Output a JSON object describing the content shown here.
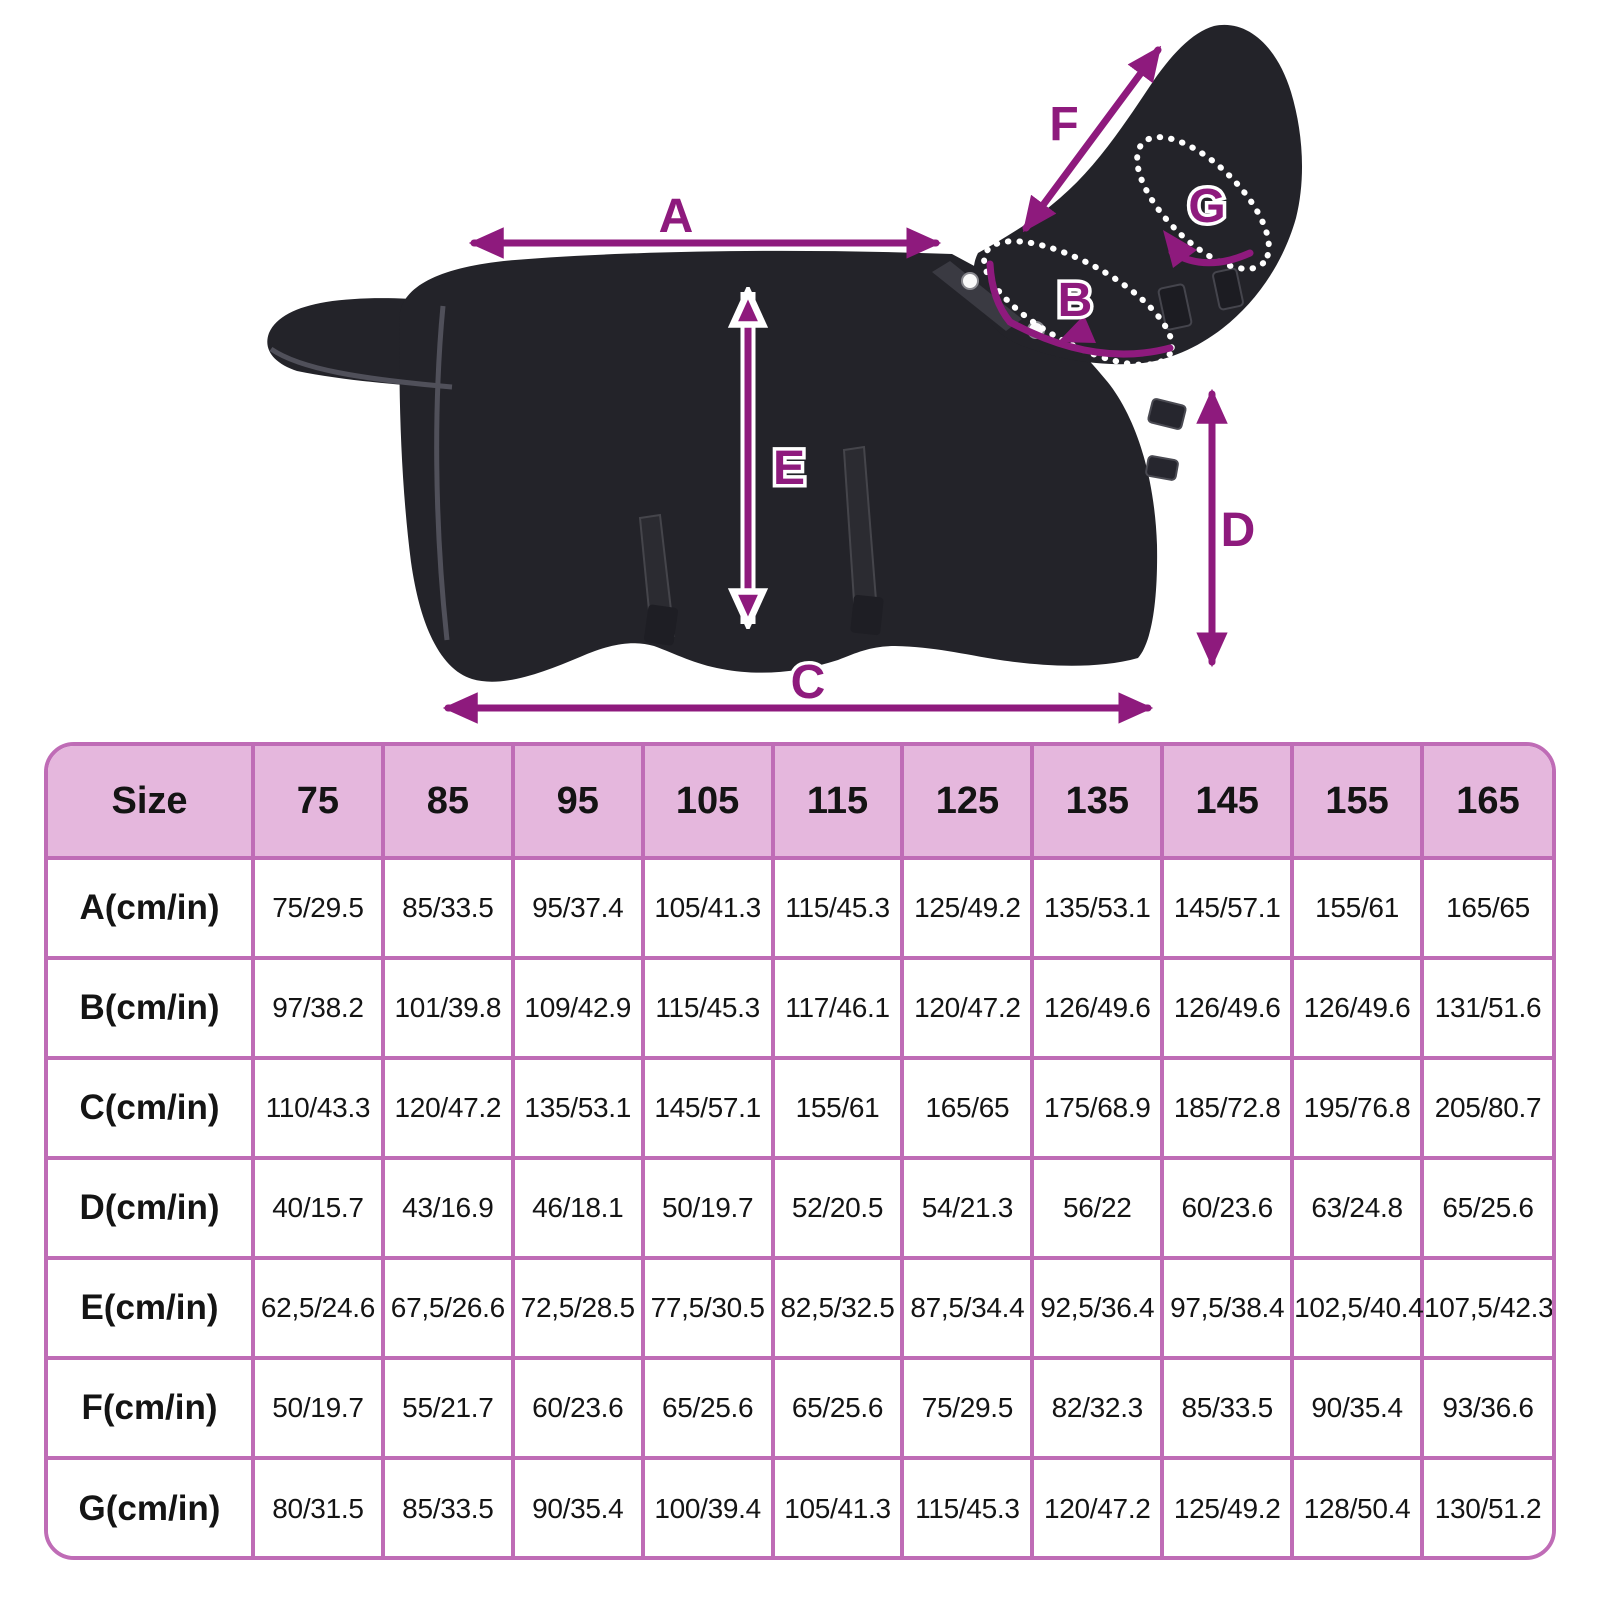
{
  "diagram": {
    "labels": {
      "A": "A",
      "B": "B",
      "C": "C",
      "D": "D",
      "E": "E",
      "F": "F",
      "G": "G"
    },
    "colors": {
      "arrow": "#8e1a7d",
      "blanket": "#232329",
      "blanket_edge": "#50505a"
    }
  },
  "table": {
    "colors": {
      "border": "#bf6cb6",
      "header_fill": "#e5b7dd",
      "cell_fill": "#ffffff",
      "text": "#141414"
    },
    "header": [
      "Size",
      "75",
      "85",
      "95",
      "105",
      "115",
      "125",
      "135",
      "145",
      "155",
      "165"
    ],
    "rows": [
      {
        "label": "A(cm/in)",
        "values": [
          "75/29.5",
          "85/33.5",
          "95/37.4",
          "105/41.3",
          "115/45.3",
          "125/49.2",
          "135/53.1",
          "145/57.1",
          "155/61",
          "165/65"
        ]
      },
      {
        "label": "B(cm/in)",
        "values": [
          "97/38.2",
          "101/39.8",
          "109/42.9",
          "115/45.3",
          "117/46.1",
          "120/47.2",
          "126/49.6",
          "126/49.6",
          "126/49.6",
          "131/51.6"
        ]
      },
      {
        "label": "C(cm/in)",
        "values": [
          "110/43.3",
          "120/47.2",
          "135/53.1",
          "145/57.1",
          "155/61",
          "165/65",
          "175/68.9",
          "185/72.8",
          "195/76.8",
          "205/80.7"
        ]
      },
      {
        "label": "D(cm/in)",
        "values": [
          "40/15.7",
          "43/16.9",
          "46/18.1",
          "50/19.7",
          "52/20.5",
          "54/21.3",
          "56/22",
          "60/23.6",
          "63/24.8",
          "65/25.6"
        ]
      },
      {
        "label": "E(cm/in)",
        "values": [
          "62,5/24.6",
          "67,5/26.6",
          "72,5/28.5",
          "77,5/30.5",
          "82,5/32.5",
          "87,5/34.4",
          "92,5/36.4",
          "97,5/38.4",
          "102,5/40.4",
          "107,5/42.3"
        ]
      },
      {
        "label": "F(cm/in)",
        "values": [
          "50/19.7",
          "55/21.7",
          "60/23.6",
          "65/25.6",
          "65/25.6",
          "75/29.5",
          "82/32.3",
          "85/33.5",
          "90/35.4",
          "93/36.6"
        ]
      },
      {
        "label": "G(cm/in)",
        "values": [
          "80/31.5",
          "85/33.5",
          "90/35.4",
          "100/39.4",
          "105/41.3",
          "115/45.3",
          "120/47.2",
          "125/49.2",
          "128/50.4",
          "130/51.2"
        ]
      }
    ]
  }
}
